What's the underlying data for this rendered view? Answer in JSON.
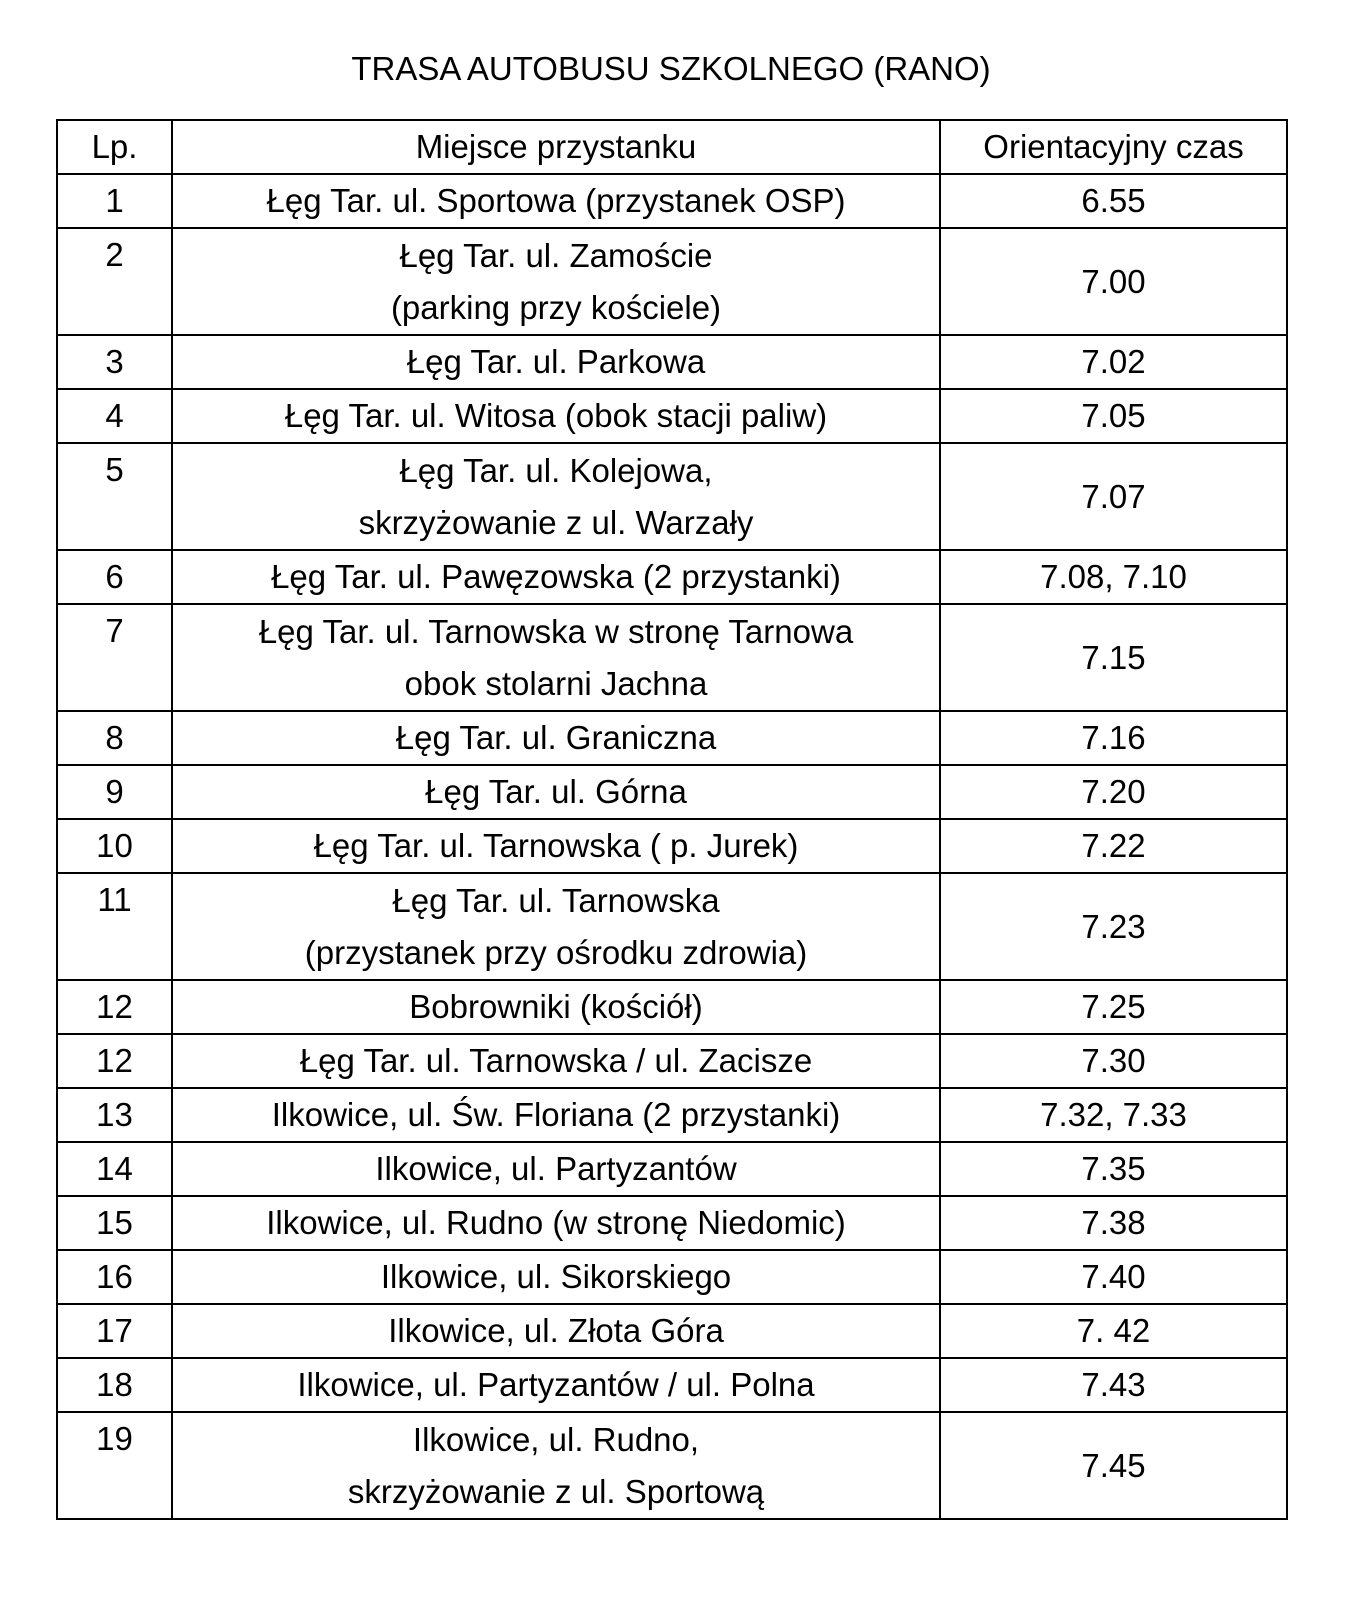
{
  "title": "TRASA AUTOBUSU SZKOLNEGO (RANO)",
  "table": {
    "headers": [
      "Lp.",
      "Miejsce przystanku",
      "Orientacyjny czas"
    ],
    "rows": [
      {
        "lp": "1",
        "place": [
          "Łęg Tar. ul. Sportowa (przystanek OSP)"
        ],
        "time": "6.55"
      },
      {
        "lp": "2",
        "place": [
          "Łęg Tar. ul. Zamoście",
          "(parking przy kościele)"
        ],
        "time": "7.00"
      },
      {
        "lp": "3",
        "place": [
          "Łęg Tar. ul. Parkowa"
        ],
        "time": "7.02"
      },
      {
        "lp": "4",
        "place": [
          "Łęg Tar. ul. Witosa (obok stacji paliw)"
        ],
        "time": "7.05"
      },
      {
        "lp": "5",
        "place": [
          "Łęg Tar. ul. Kolejowa,",
          "skrzyżowanie z ul. Warzały"
        ],
        "time": "7.07"
      },
      {
        "lp": "6",
        "place": [
          "Łęg Tar. ul. Pawęzowska (2 przystanki)"
        ],
        "time": "7.08,  7.10"
      },
      {
        "lp": "7",
        "place": [
          "Łęg Tar. ul. Tarnowska w stronę Tarnowa",
          "obok stolarni Jachna"
        ],
        "time": "7.15"
      },
      {
        "lp": "8",
        "place": [
          "Łęg Tar. ul. Graniczna"
        ],
        "time": "7.16"
      },
      {
        "lp": "9",
        "place": [
          "Łęg Tar. ul. Górna"
        ],
        "time": "7.20"
      },
      {
        "lp": "10",
        "place": [
          "Łęg Tar. ul. Tarnowska ( p. Jurek)"
        ],
        "time": "7.22"
      },
      {
        "lp": "11",
        "place": [
          "Łęg Tar. ul. Tarnowska",
          "(przystanek przy ośrodku zdrowia)"
        ],
        "time": "7.23"
      },
      {
        "lp": "12",
        "place": [
          "Bobrowniki (kościół)"
        ],
        "time": "7.25"
      },
      {
        "lp": "12",
        "place": [
          "Łęg Tar. ul. Tarnowska / ul. Zacisze"
        ],
        "time": "7.30"
      },
      {
        "lp": "13",
        "place": [
          "Ilkowice, ul. Św. Floriana (2 przystanki)"
        ],
        "time": "7.32,  7.33"
      },
      {
        "lp": "14",
        "place": [
          "Ilkowice, ul. Partyzantów"
        ],
        "time": "7.35"
      },
      {
        "lp": "15",
        "place": [
          "Ilkowice, ul. Rudno (w stronę Niedomic)"
        ],
        "time": "7.38"
      },
      {
        "lp": "16",
        "place": [
          "Ilkowice, ul. Sikorskiego"
        ],
        "time": "7.40"
      },
      {
        "lp": "17",
        "place": [
          "Ilkowice, ul. Złota Góra"
        ],
        "time": "7. 42"
      },
      {
        "lp": "18",
        "place": [
          "Ilkowice, ul. Partyzantów / ul. Polna"
        ],
        "time": "7.43"
      },
      {
        "lp": "19",
        "place": [
          "Ilkowice, ul. Rudno,",
          "skrzyżowanie z ul. Sportową"
        ],
        "time": "7.45"
      }
    ]
  }
}
